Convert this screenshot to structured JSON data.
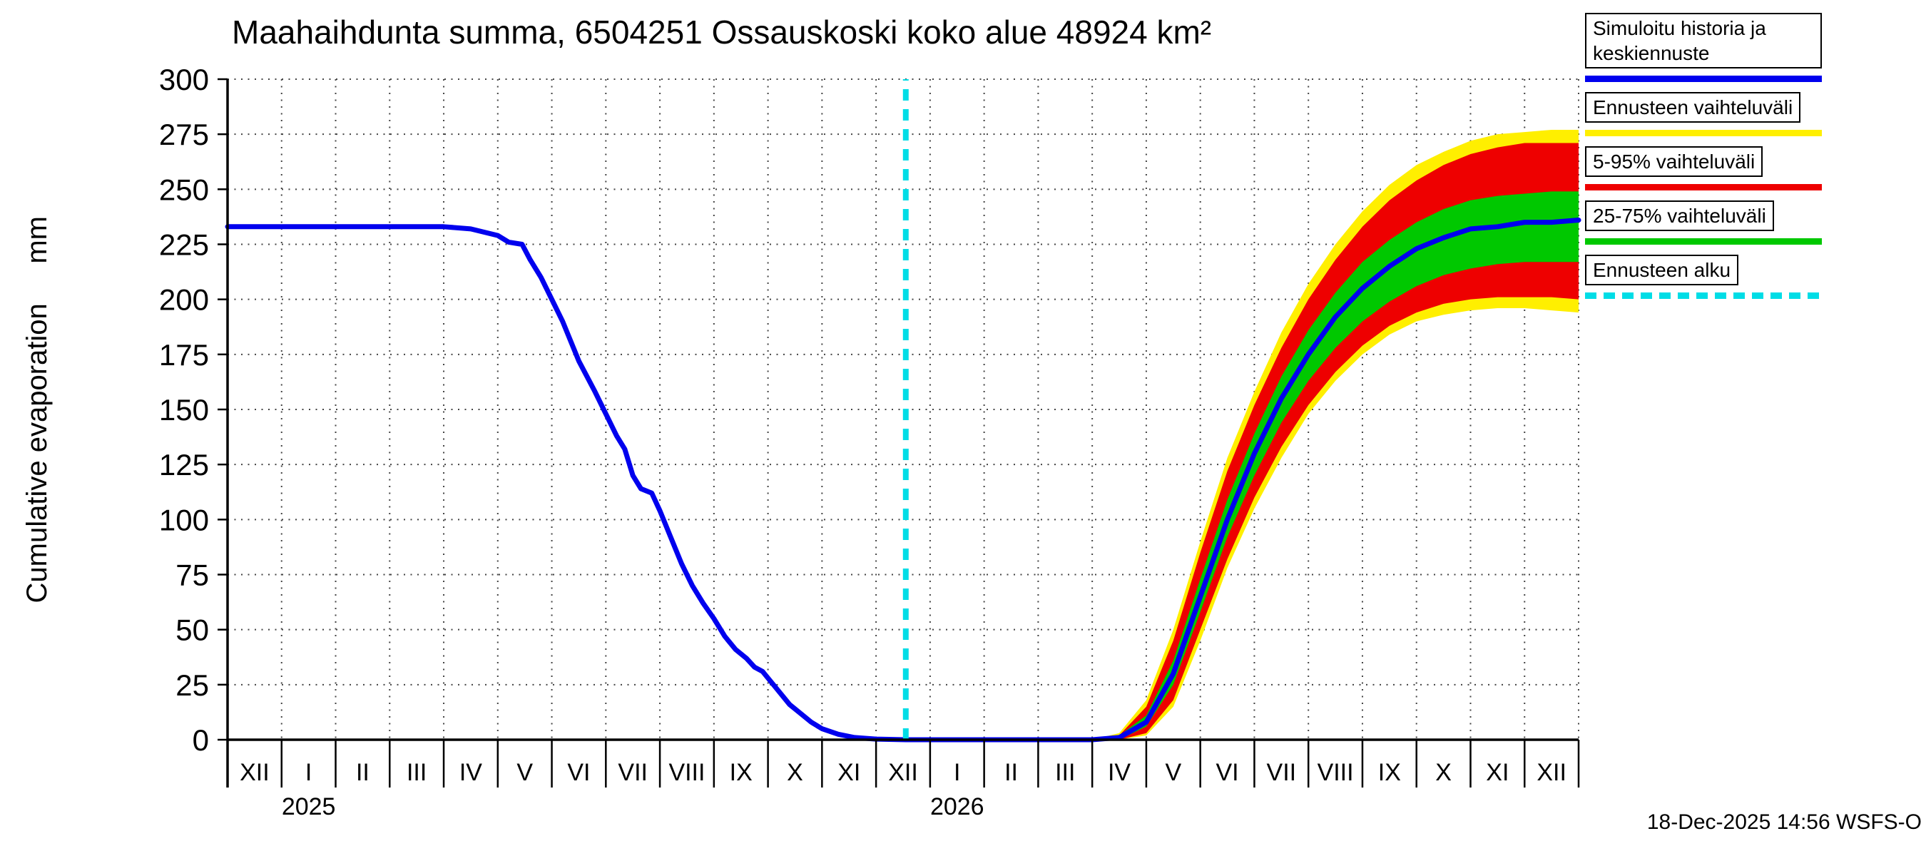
{
  "title": "Maahaihdunta summa, 6504251 Ossauskoski koko alue 48924 km²",
  "timestamp": "18-Dec-2025 14:56 WSFS-O",
  "ylabel_display": "Cumulative evaporation     mm",
  "legend": {
    "entries": [
      {
        "label": "Simuloitu historia ja keskiennuste",
        "color": "#0000ee",
        "style": "solid"
      },
      {
        "label": "Ennusteen vaihteluväli",
        "color": "#ffef00",
        "style": "solid"
      },
      {
        "label": "5-95% vaihteluväli",
        "color": "#ee0000",
        "style": "solid"
      },
      {
        "label": "25-75% vaihteluväli",
        "color": "#00c800",
        "style": "solid"
      },
      {
        "label": "Ennusteen alku",
        "color": "#00dde6",
        "style": "dashed"
      }
    ]
  },
  "chart_data": {
    "type": "line",
    "title": "Maahaihdunta summa, 6504251 Ossauskoski koko alue 48924 km²",
    "ylabel": "Cumulative evaporation",
    "ylabel_unit": "mm",
    "ylim": [
      0,
      300
    ],
    "ytick_step": 25,
    "ytick_labels": [
      "0",
      "25",
      "50",
      "75",
      "100",
      "125",
      "150",
      "175",
      "200",
      "225",
      "250",
      "275",
      "300"
    ],
    "x_unit": "months from 1 Dec 2024",
    "xlim_months": [
      0,
      25
    ],
    "grid": "dotted both axes",
    "legend_position": "outside top-right",
    "month_labels": [
      "XII",
      "I",
      "II",
      "III",
      "IV",
      "V",
      "VI",
      "VII",
      "VIII",
      "IX",
      "X",
      "XI",
      "XII",
      "I",
      "II",
      "III",
      "IV",
      "V",
      "VI",
      "VII",
      "VIII",
      "IX",
      "X",
      "XI",
      "XII"
    ],
    "year_labels": [
      {
        "label": "2025",
        "t": 1.5
      },
      {
        "label": "2026",
        "t": 13.5
      }
    ],
    "forecast_start_t": 12.55,
    "colors": {
      "median": "#0000ee",
      "range_band": "#ffef00",
      "p5_95_band": "#ee0000",
      "p25_75_band": "#00c800",
      "forecast_start": "#00dde6",
      "grid": "#444444",
      "axis": "#000000"
    },
    "series": {
      "median": {
        "name": "Simuloitu historia ja keskiennuste",
        "x": [
          0,
          1,
          2,
          3,
          4,
          4.5,
          5,
          5.2,
          5.45,
          5.6,
          5.8,
          6,
          6.2,
          6.5,
          6.8,
          7,
          7.2,
          7.35,
          7.5,
          7.65,
          7.85,
          8,
          8.2,
          8.4,
          8.6,
          8.8,
          9,
          9.2,
          9.4,
          9.6,
          9.75,
          9.9,
          10,
          10.2,
          10.4,
          10.6,
          10.8,
          11,
          11.3,
          11.6,
          12,
          12.55,
          13,
          14,
          15,
          16,
          16.5,
          17,
          17.5,
          18,
          18.5,
          19,
          19.5,
          20,
          20.5,
          21,
          21.5,
          22,
          22.5,
          23,
          23.5,
          24,
          24.5,
          25
        ],
        "v": [
          233,
          233,
          233,
          233,
          233,
          232,
          229,
          226,
          225,
          218,
          210,
          200,
          190,
          172,
          158,
          148,
          138,
          132,
          120,
          114,
          112,
          104,
          92,
          80,
          70,
          62,
          55,
          47,
          41,
          37,
          33,
          31,
          28,
          22,
          16,
          12,
          8,
          5,
          2.5,
          1,
          0.3,
          0,
          0,
          0,
          0,
          0,
          1,
          8,
          30,
          65,
          100,
          130,
          155,
          175,
          192,
          205,
          215,
          223,
          228,
          232,
          233,
          235,
          235,
          236
        ]
      },
      "range_band": {
        "name": "Ennusteen vaihteluväli",
        "x": [
          16,
          16.5,
          17,
          17.5,
          18,
          18.5,
          19,
          19.5,
          20,
          20.5,
          21,
          21.5,
          22,
          22.5,
          23,
          23.5,
          24,
          24.5,
          25
        ],
        "low": [
          0,
          0,
          2,
          15,
          45,
          78,
          105,
          128,
          148,
          163,
          175,
          184,
          190,
          193,
          195,
          196,
          196,
          195,
          194
        ],
        "high": [
          0,
          3,
          18,
          50,
          90,
          128,
          158,
          185,
          207,
          225,
          240,
          252,
          261,
          267,
          272,
          275,
          276,
          277,
          277
        ]
      },
      "p5_95_band": {
        "name": "5-95% vaihteluväli",
        "x": [
          16,
          16.5,
          17,
          17.5,
          18,
          18.5,
          19,
          19.5,
          20,
          20.5,
          21,
          21.5,
          22,
          22.5,
          23,
          23.5,
          24,
          24.5,
          25
        ],
        "low": [
          0,
          0,
          3,
          18,
          50,
          82,
          110,
          133,
          152,
          167,
          179,
          188,
          194,
          198,
          200,
          201,
          201,
          201,
          200
        ],
        "high": [
          0,
          2,
          15,
          45,
          85,
          122,
          152,
          178,
          200,
          218,
          233,
          245,
          254,
          261,
          266,
          269,
          271,
          271,
          271
        ]
      },
      "p25_75_band": {
        "name": "25-75% vaihteluväli",
        "x": [
          16,
          16.5,
          17,
          17.5,
          18,
          18.5,
          19,
          19.5,
          20,
          20.5,
          21,
          21.5,
          22,
          22.5,
          23,
          23.5,
          24,
          24.5,
          25
        ],
        "low": [
          0,
          0,
          6,
          25,
          58,
          92,
          120,
          144,
          163,
          178,
          190,
          199,
          206,
          211,
          214,
          216,
          217,
          217,
          217
        ],
        "high": [
          0,
          2,
          11,
          36,
          73,
          109,
          139,
          165,
          186,
          203,
          217,
          227,
          235,
          241,
          245,
          247,
          248,
          249,
          249
        ]
      }
    }
  }
}
